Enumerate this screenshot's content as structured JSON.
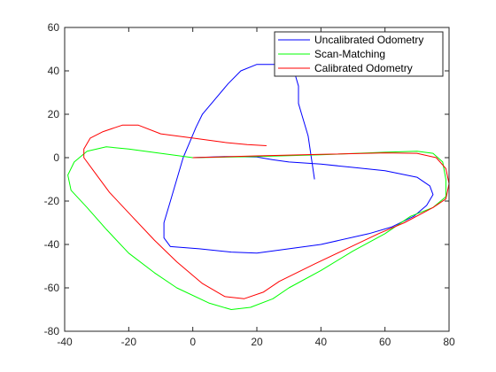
{
  "chart_data": {
    "type": "line",
    "title": "",
    "xlabel": "",
    "ylabel": "",
    "xlim": [
      -40,
      80
    ],
    "ylim": [
      -80,
      60
    ],
    "x_ticks": [
      "-40",
      "-20",
      "0",
      "20",
      "40",
      "60",
      "80"
    ],
    "y_ticks": [
      "60",
      "40",
      "20",
      "0",
      "-20",
      "-40",
      "-60",
      "-80"
    ],
    "grid": false,
    "legend_position": "top-right",
    "series": [
      {
        "name": "Uncalibrated Odometry",
        "color": "#0000ff",
        "points": [
          [
            0,
            0
          ],
          [
            10,
            0.5
          ],
          [
            20,
            0.3
          ],
          [
            25,
            -1
          ],
          [
            30,
            -2
          ],
          [
            40,
            -3
          ],
          [
            50,
            -4.5
          ],
          [
            60,
            -6
          ],
          [
            70,
            -9
          ],
          [
            74,
            -13
          ],
          [
            75,
            -17
          ],
          [
            73,
            -22
          ],
          [
            69,
            -27
          ],
          [
            62,
            -32
          ],
          [
            55,
            -35
          ],
          [
            40,
            -40
          ],
          [
            30,
            -42
          ],
          [
            20,
            -44
          ],
          [
            12,
            -43.5
          ],
          [
            2,
            -42
          ],
          [
            -7,
            -41
          ],
          [
            -9,
            -37
          ],
          [
            -9,
            -30
          ],
          [
            -7,
            -20
          ],
          [
            -5,
            -10
          ],
          [
            -3,
            0
          ],
          [
            -1,
            7
          ],
          [
            1,
            14
          ],
          [
            3,
            20
          ],
          [
            7,
            27
          ],
          [
            11,
            34
          ],
          [
            15,
            40
          ],
          [
            20,
            43
          ],
          [
            26,
            43
          ],
          [
            30,
            41
          ],
          [
            32,
            38
          ],
          [
            33,
            33
          ],
          [
            33,
            25
          ],
          [
            34,
            20
          ],
          [
            36,
            10
          ],
          [
            37,
            0
          ],
          [
            38,
            -10
          ]
        ]
      },
      {
        "name": "Scan-Matching",
        "color": "#00ff00",
        "points": [
          [
            0,
            0
          ],
          [
            20,
            0.5
          ],
          [
            40,
            1.3
          ],
          [
            60,
            2.5
          ],
          [
            70,
            3
          ],
          [
            75,
            2
          ],
          [
            78,
            -2
          ],
          [
            79,
            -10
          ],
          [
            79,
            -18
          ],
          [
            75,
            -23
          ],
          [
            68,
            -27
          ],
          [
            60,
            -35
          ],
          [
            50,
            -43
          ],
          [
            40,
            -52
          ],
          [
            30,
            -60
          ],
          [
            25,
            -65
          ],
          [
            18,
            -69
          ],
          [
            12,
            -70
          ],
          [
            5,
            -67
          ],
          [
            -5,
            -60
          ],
          [
            -12,
            -53
          ],
          [
            -20,
            -44
          ],
          [
            -27,
            -33
          ],
          [
            -33,
            -23
          ],
          [
            -38,
            -15
          ],
          [
            -39,
            -8
          ],
          [
            -37,
            -2
          ],
          [
            -33,
            3
          ],
          [
            -27,
            5
          ],
          [
            -20,
            4
          ],
          [
            -10,
            2
          ],
          [
            0,
            0
          ]
        ]
      },
      {
        "name": "Calibrated Odometry",
        "color": "#ff0000",
        "points": [
          [
            0,
            0
          ],
          [
            20,
            0.8
          ],
          [
            40,
            1.5
          ],
          [
            60,
            2.2
          ],
          [
            70,
            2
          ],
          [
            76,
            0
          ],
          [
            79,
            -5
          ],
          [
            80,
            -12
          ],
          [
            79,
            -19
          ],
          [
            75,
            -23
          ],
          [
            66,
            -30
          ],
          [
            58,
            -35
          ],
          [
            48,
            -42
          ],
          [
            38,
            -49
          ],
          [
            27,
            -57
          ],
          [
            22,
            -62
          ],
          [
            16,
            -65
          ],
          [
            10,
            -64
          ],
          [
            3,
            -58
          ],
          [
            -5,
            -48
          ],
          [
            -12,
            -38
          ],
          [
            -19,
            -27
          ],
          [
            -26,
            -16
          ],
          [
            -31,
            -6
          ],
          [
            -34,
            0
          ],
          [
            -34,
            4
          ],
          [
            -32,
            9
          ],
          [
            -28,
            12
          ],
          [
            -22,
            15
          ],
          [
            -17,
            15
          ],
          [
            -10,
            11
          ],
          [
            0,
            9
          ],
          [
            10,
            7
          ],
          [
            17,
            6
          ],
          [
            23,
            5.5
          ]
        ]
      }
    ]
  }
}
